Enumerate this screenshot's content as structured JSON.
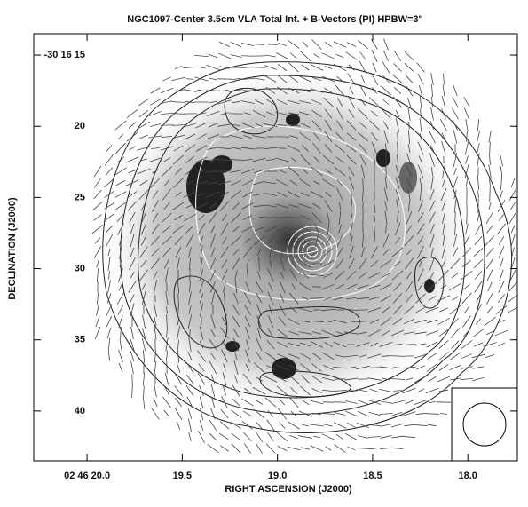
{
  "chart_data": {
    "type": "image",
    "title": "NGC1097-Center   3.5cm   VLA   Total Int. + B-Vectors (PI)   HPBW=3\"",
    "xlabel": "RIGHT ASCENSION (J2000)",
    "ylabel": "DECLINATION (J2000)",
    "xlim": [
      20.28,
      17.74
    ],
    "ylim": [
      43.5,
      13.5
    ],
    "xticks": [
      {
        "value": 20,
        "label": "02 46 20.0"
      },
      19.5,
      {
        "value": 19,
        "label": "19.0"
      },
      18.5,
      {
        "value": 18,
        "label": "18.0"
      }
    ],
    "yticks": [
      {
        "value": 15,
        "label": "-30 16 15"
      },
      20,
      25,
      30,
      35,
      40
    ],
    "grid": false
  }
}
